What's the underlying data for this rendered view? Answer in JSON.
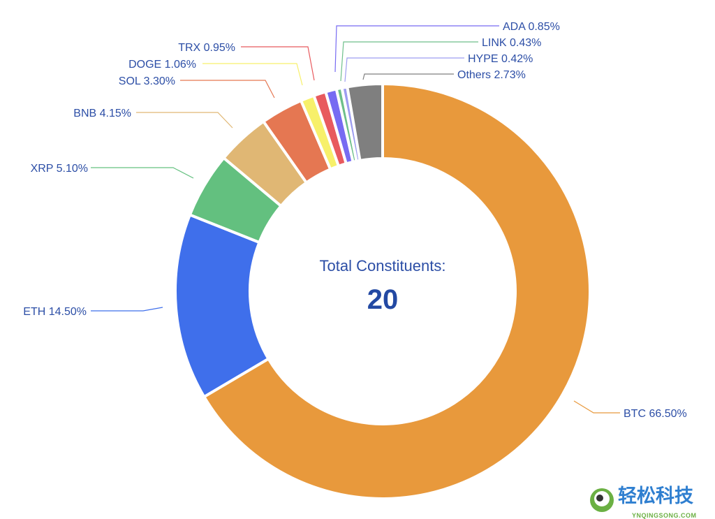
{
  "chart_data": {
    "type": "pie",
    "donut": true,
    "start": "top, clockwise",
    "center_label": "Total Constituents:",
    "center_value": "20",
    "slices": [
      {
        "name": "BTC",
        "value": 66.5,
        "label": "BTC 66.50%",
        "color": "#E8993C"
      },
      {
        "name": "ETH",
        "value": 14.5,
        "label": "ETH 14.50%",
        "color": "#3F6FEB"
      },
      {
        "name": "XRP",
        "value": 5.1,
        "label": "XRP 5.10%",
        "color": "#63C07F"
      },
      {
        "name": "BNB",
        "value": 4.15,
        "label": "BNB 4.15%",
        "color": "#E0B774"
      },
      {
        "name": "SOL",
        "value": 3.3,
        "label": "SOL 3.30%",
        "color": "#E57752"
      },
      {
        "name": "DOGE",
        "value": 1.06,
        "label": "DOGE 1.06%",
        "color": "#F7F06A"
      },
      {
        "name": "TRX",
        "value": 0.95,
        "label": "TRX 0.95%",
        "color": "#E85A5E"
      },
      {
        "name": "ADA",
        "value": 0.85,
        "label": "ADA 0.85%",
        "color": "#776BF2"
      },
      {
        "name": "LINK",
        "value": 0.43,
        "label": "LINK 0.43%",
        "color": "#6DBF8A"
      },
      {
        "name": "HYPE",
        "value": 0.42,
        "label": "HYPE 0.42%",
        "color": "#9D9DF0"
      },
      {
        "name": "Others",
        "value": 2.73,
        "label": "Others 2.73%",
        "color": "#7F7F7F"
      }
    ]
  },
  "watermark": {
    "text": "轻松科技",
    "sub": "YNQINGSONG.COM"
  }
}
